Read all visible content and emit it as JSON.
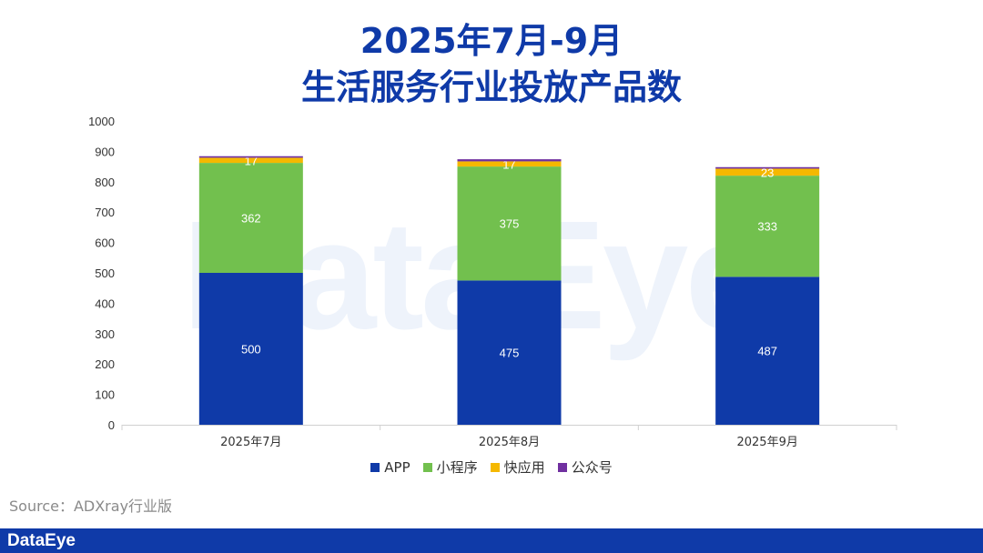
{
  "title_line1": "2025年7月-9月",
  "title_line2": "生活服务行业投放产品数",
  "source": "Source：ADXray行业版",
  "footer_logo": "DataEye",
  "watermark": "DataEye",
  "colors": {
    "title": "#0f3aa8",
    "APP": "#0f3aa8",
    "小程序": "#72c04e",
    "快应用": "#f5b800",
    "公众号": "#7030a0",
    "footer": "#0f3aa8"
  },
  "chart_data": {
    "type": "bar",
    "stacked": true,
    "categories": [
      "2025年7月",
      "2025年8月",
      "2025年9月"
    ],
    "series": [
      {
        "name": "APP",
        "values": [
          500,
          475,
          487
        ]
      },
      {
        "name": "小程序",
        "values": [
          362,
          375,
          333
        ]
      },
      {
        "name": "快应用",
        "values": [
          17,
          17,
          23
        ]
      },
      {
        "name": "公众号",
        "values": [
          5,
          7,
          5
        ]
      }
    ],
    "labeled_series": [
      "APP",
      "小程序",
      "快应用"
    ],
    "yticks": [
      0,
      100,
      200,
      300,
      400,
      500,
      600,
      700,
      800,
      900,
      1000
    ],
    "ylim": [
      0,
      1000
    ],
    "legend_position": "bottom",
    "grid": false
  }
}
